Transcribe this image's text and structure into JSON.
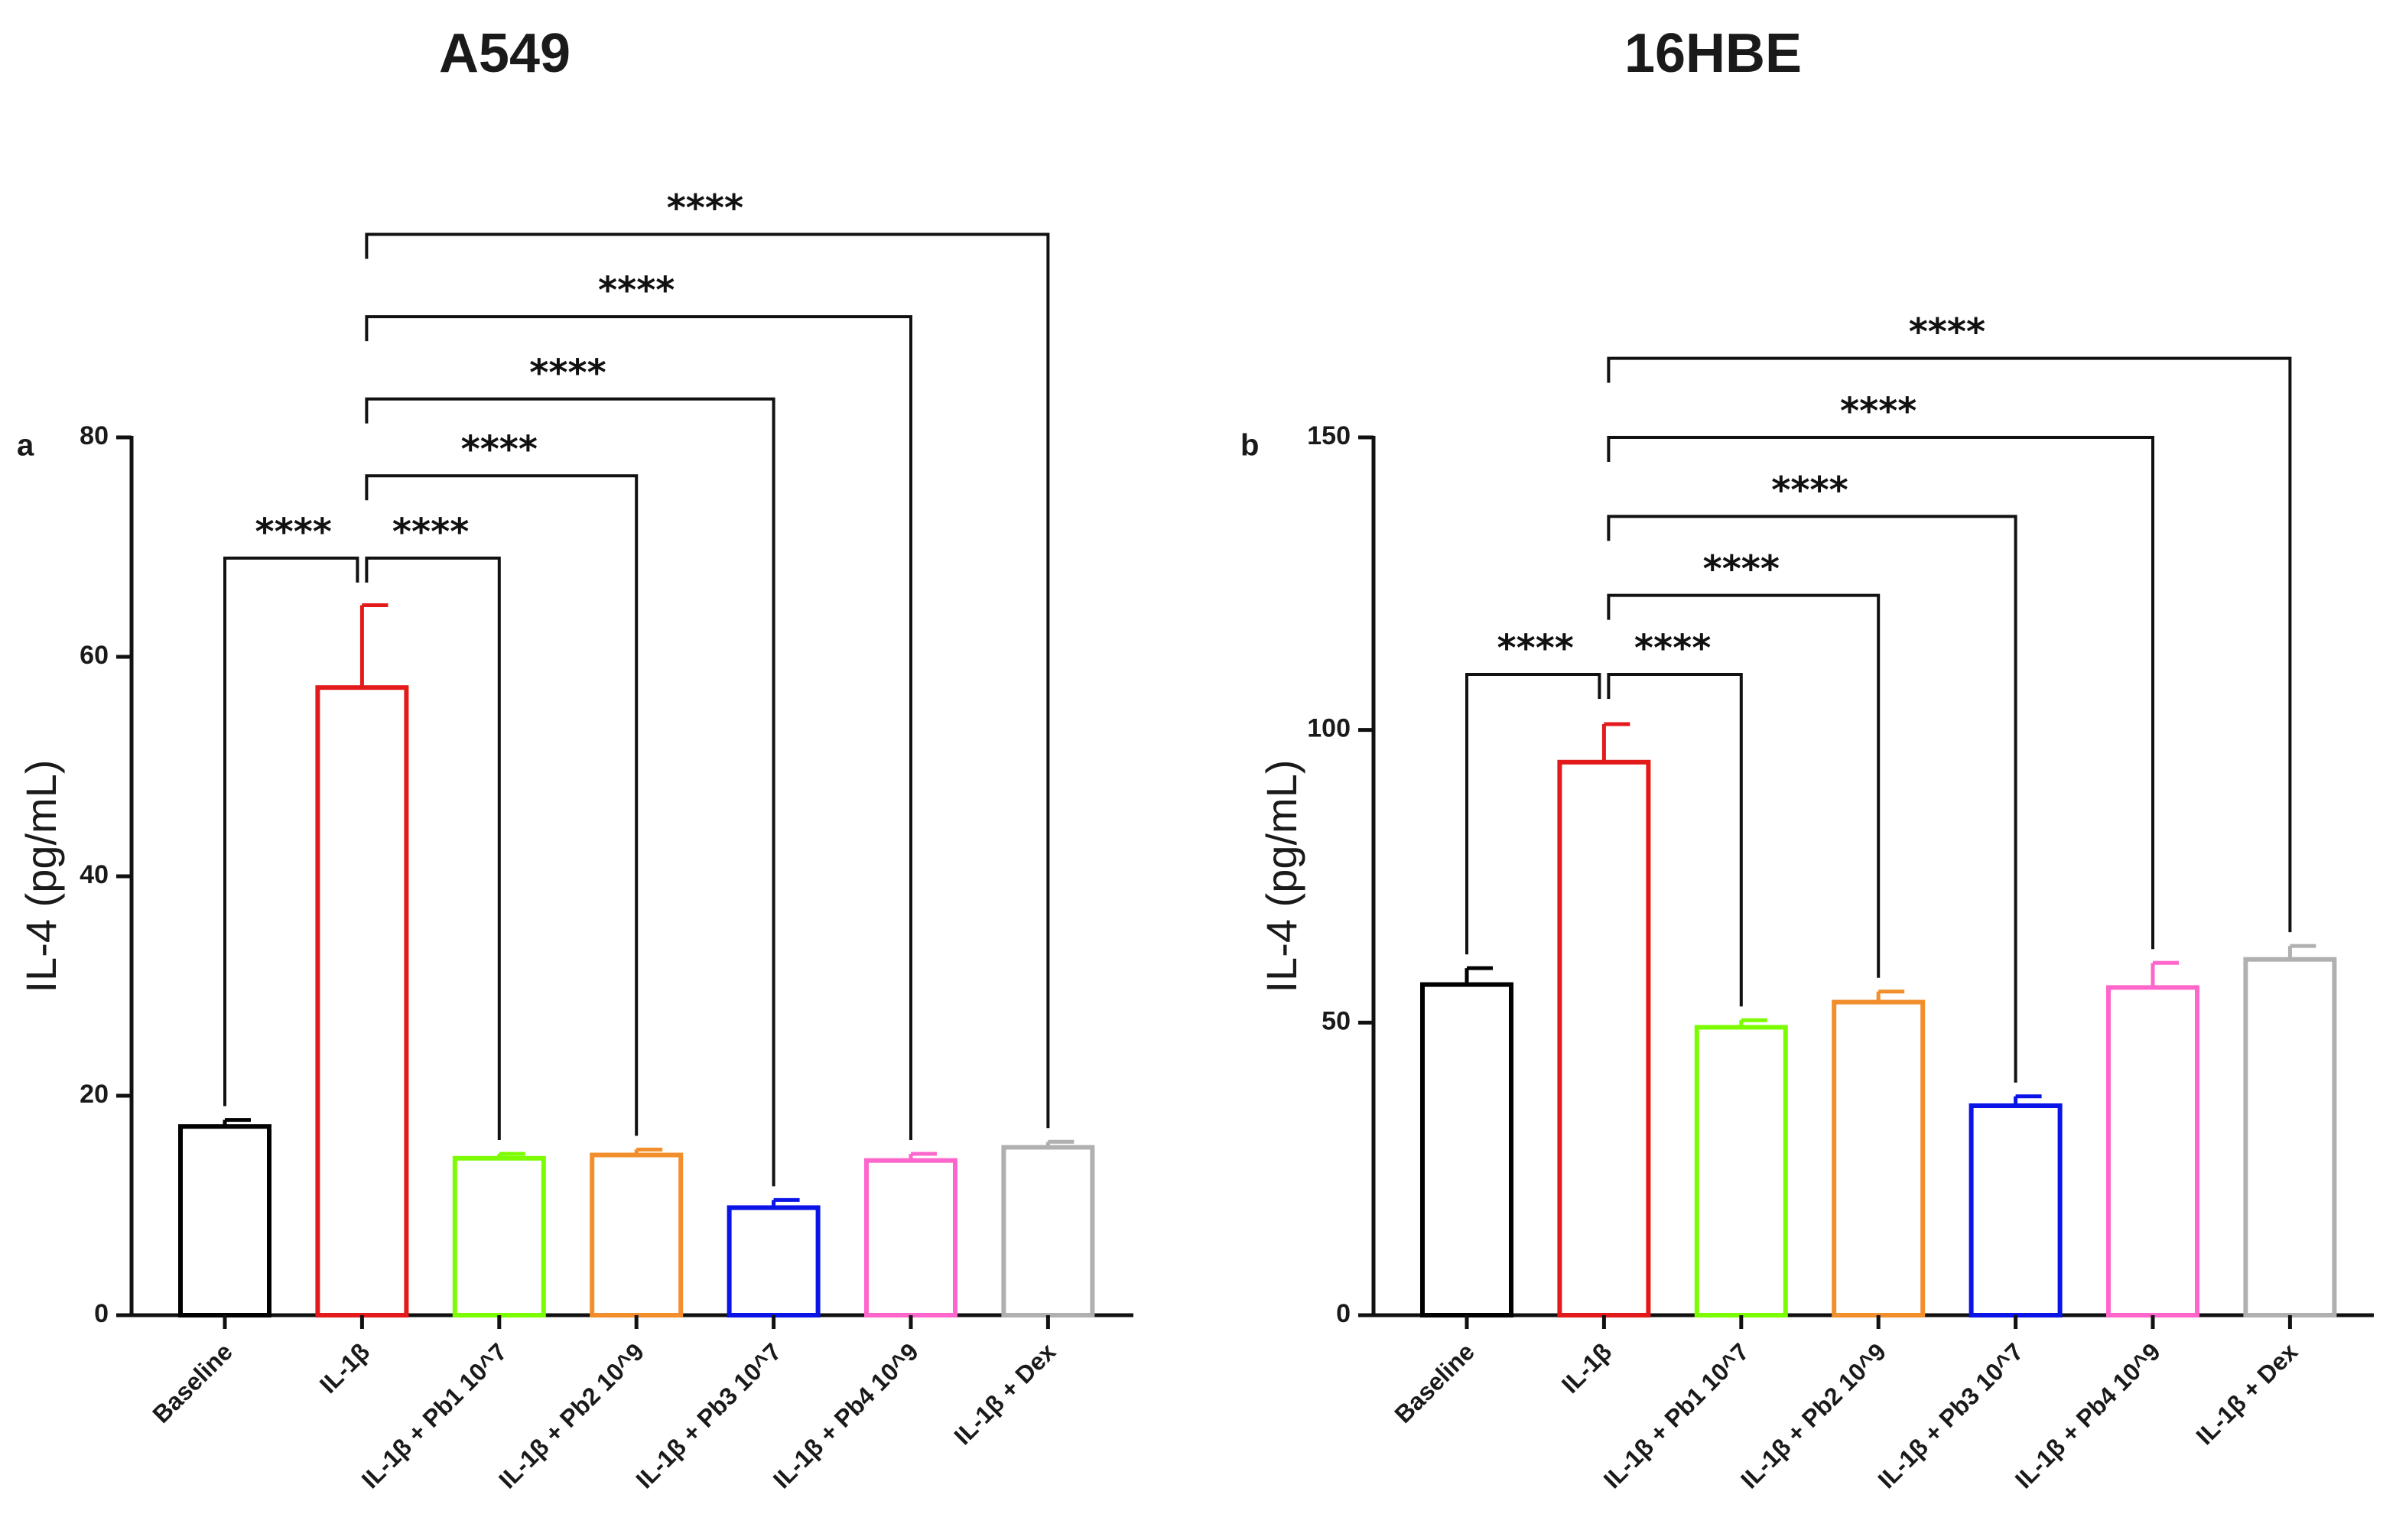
{
  "chart_data": [
    {
      "type": "bar",
      "panel": "a",
      "title": "A549",
      "ylabel": "IL-4 (pg/mL)",
      "xlabel": "",
      "ylim": [
        0,
        80
      ],
      "yticks": [
        0,
        20,
        40,
        60,
        80
      ],
      "categories": [
        "Baseline",
        "IL-1β",
        "IL-1β + Pb1 10^7",
        "IL-1β + Pb2 10^9",
        "IL-1β + Pb3 10^7",
        "IL-1β + Pb4 10^9",
        "IL-1β + Dex"
      ],
      "values": [
        17.2,
        57.2,
        14.3,
        14.6,
        9.8,
        14.1,
        15.3
      ],
      "errors": [
        0.6,
        7.5,
        0.4,
        0.5,
        0.7,
        0.6,
        0.5
      ],
      "colors": [
        "#000000",
        "#e31a1c",
        "#7cfc00",
        "#f28e2b",
        "#0a14e6",
        "#ff66cc",
        "#b0b0b0"
      ],
      "comparisons": [
        {
          "from": 1,
          "to": 0,
          "label": "****",
          "y": 69
        },
        {
          "from": 1,
          "to": 2,
          "label": "****",
          "y": 69
        },
        {
          "from": 1,
          "to": 3,
          "label": "****",
          "y": 76.5
        },
        {
          "from": 1,
          "to": 4,
          "label": "****",
          "y": 83.5
        },
        {
          "from": 1,
          "to": 5,
          "label": "****",
          "y": 91
        },
        {
          "from": 1,
          "to": 6,
          "label": "****",
          "y": 98.5
        }
      ]
    },
    {
      "type": "bar",
      "panel": "b",
      "title": "16HBE",
      "ylabel": "IL-4 (pg/mL)",
      "xlabel": "",
      "ylim": [
        0,
        150
      ],
      "yticks": [
        0,
        50,
        100,
        150
      ],
      "categories": [
        "Baseline",
        "IL-1β",
        "IL-1β + Pb1 10^7",
        "IL-1β + Pb2 10^9",
        "IL-1β + Pb3 10^7",
        "IL-1β + Pb4 10^9",
        "IL-1β + Dex"
      ],
      "values": [
        56.5,
        94.5,
        49.2,
        53.5,
        35.8,
        56.0,
        60.8
      ],
      "errors": [
        2.8,
        6.5,
        1.2,
        1.8,
        1.6,
        4.2,
        2.3
      ],
      "colors": [
        "#000000",
        "#e31a1c",
        "#7cfc00",
        "#f28e2b",
        "#0a14e6",
        "#ff66cc",
        "#b0b0b0"
      ],
      "comparisons": [
        {
          "from": 1,
          "to": 0,
          "label": "****",
          "y": 109.5
        },
        {
          "from": 1,
          "to": 2,
          "label": "****",
          "y": 109.5
        },
        {
          "from": 1,
          "to": 3,
          "label": "****",
          "y": 123
        },
        {
          "from": 1,
          "to": 4,
          "label": "****",
          "y": 136.5
        },
        {
          "from": 1,
          "to": 5,
          "label": "****",
          "y": 150
        },
        {
          "from": 1,
          "to": 6,
          "label": "****",
          "y": 163.5
        }
      ]
    }
  ]
}
